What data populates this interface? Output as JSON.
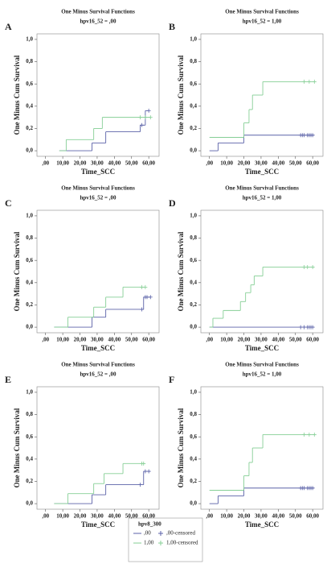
{
  "chart_data": [
    {
      "type": "line",
      "step": true,
      "panel": "A",
      "title": "One Minus Survival Functions",
      "subtitle": "hpv16_52 = ,00",
      "x_label": "Time_SCC",
      "y_label": "One Minus Cum Survival",
      "xlim": [
        -5,
        66
      ],
      "ylim": [
        -0.05,
        1.05
      ],
      "xticks": [
        {
          "value": 0,
          "label": ",00"
        },
        {
          "value": 10,
          "label": "10,00"
        },
        {
          "value": 20,
          "label": "20,00"
        },
        {
          "value": 30,
          "label": "30,00"
        },
        {
          "value": 40,
          "label": "40,00"
        },
        {
          "value": 50,
          "label": "50,00"
        },
        {
          "value": 60,
          "label": "60,00"
        }
      ],
      "yticks": [
        {
          "value": 0,
          "label": "0,0"
        },
        {
          "value": 0.2,
          "label": "0,2"
        },
        {
          "value": 0.4,
          "label": "0,4"
        },
        {
          "value": 0.6,
          "label": "0,6"
        },
        {
          "value": 0.8,
          "label": "0,8"
        },
        {
          "value": 1,
          "label": "1,0"
        }
      ],
      "series": [
        {
          "name": ",00",
          "color": "#5b62a8",
          "x": [
            8,
            27,
            35,
            55,
            58,
            60
          ],
          "values": [
            0,
            0.07,
            0.17,
            0.23,
            0.36,
            0.36
          ],
          "censored_x": [
            56,
            60
          ],
          "censored_values": [
            0.23,
            0.36
          ]
        },
        {
          "name": "1,00",
          "color": "#86cf96",
          "x": [
            8,
            12,
            28,
            33,
            61
          ],
          "values": [
            0,
            0.1,
            0.2,
            0.3,
            0.3
          ],
          "censored_x": [
            55,
            58,
            61
          ],
          "censored_values": [
            0.3,
            0.3,
            0.3
          ]
        }
      ]
    },
    {
      "type": "line",
      "step": true,
      "panel": "B",
      "title": "One Minus Survival Functions",
      "subtitle": "hpv16_52 = 1,00",
      "x_label": "Time_SCC",
      "y_label": "One Minus Cum Survival",
      "xlim": [
        -5,
        66
      ],
      "ylim": [
        -0.05,
        1.05
      ],
      "xticks": [
        {
          "value": 0,
          "label": ",00"
        },
        {
          "value": 10,
          "label": "10,00"
        },
        {
          "value": 20,
          "label": "20,00"
        },
        {
          "value": 30,
          "label": "30,00"
        },
        {
          "value": 40,
          "label": "40,00"
        },
        {
          "value": 50,
          "label": "50,00"
        },
        {
          "value": 60,
          "label": "60,00"
        }
      ],
      "yticks": [
        {
          "value": 0,
          "label": "0,0"
        },
        {
          "value": 0.2,
          "label": "0,2"
        },
        {
          "value": 0.4,
          "label": "0,4"
        },
        {
          "value": 0.6,
          "label": "0,6"
        },
        {
          "value": 0.8,
          "label": "0,8"
        },
        {
          "value": 1,
          "label": "1,0"
        }
      ],
      "series": [
        {
          "name": ",00",
          "color": "#5b62a8",
          "x": [
            0,
            5,
            20,
            61
          ],
          "values": [
            0,
            0.07,
            0.14,
            0.14
          ],
          "censored_x": [
            53,
            54,
            55,
            57,
            58,
            59,
            60
          ],
          "censored_values": [
            0.14,
            0.14,
            0.14,
            0.14,
            0.14,
            0.14,
            0.14
          ]
        },
        {
          "name": "1,00",
          "color": "#86cf96",
          "x": [
            0,
            20,
            23,
            25,
            31,
            61
          ],
          "values": [
            0.12,
            0.25,
            0.37,
            0.5,
            0.62,
            0.62
          ],
          "censored_x": [
            55,
            58,
            61
          ],
          "censored_values": [
            0.62,
            0.62,
            0.62
          ]
        }
      ]
    },
    {
      "type": "line",
      "step": true,
      "panel": "C",
      "title": "One Minus Survival Functions",
      "subtitle": "hpv16_52 = ,00",
      "x_label": "Time_SCC",
      "y_label": "One Minus Cum Survival",
      "xlim": [
        -5,
        66
      ],
      "ylim": [
        -0.05,
        1.05
      ],
      "xticks": [
        {
          "value": 0,
          "label": ",00"
        },
        {
          "value": 10,
          "label": "10,00"
        },
        {
          "value": 20,
          "label": "20,00"
        },
        {
          "value": 30,
          "label": "30,00"
        },
        {
          "value": 40,
          "label": "40,00"
        },
        {
          "value": 50,
          "label": "50,00"
        },
        {
          "value": 60,
          "label": "60,00"
        }
      ],
      "yticks": [
        {
          "value": 0,
          "label": "0,0"
        },
        {
          "value": 0.2,
          "label": "0,2"
        },
        {
          "value": 0.4,
          "label": "0,4"
        },
        {
          "value": 0.6,
          "label": "0,6"
        },
        {
          "value": 0.8,
          "label": "0,8"
        },
        {
          "value": 1,
          "label": "1,0"
        }
      ],
      "series": [
        {
          "name": ",00",
          "color": "#5b62a8",
          "x": [
            5,
            27,
            35,
            57,
            61
          ],
          "values": [
            0,
            0.09,
            0.16,
            0.27,
            0.27
          ],
          "censored_x": [
            56,
            58,
            59,
            61
          ],
          "censored_values": [
            0.16,
            0.27,
            0.27,
            0.27
          ]
        },
        {
          "name": "1,00",
          "color": "#86cf96",
          "x": [
            5,
            13,
            28,
            35,
            45,
            58
          ],
          "values": [
            0,
            0.09,
            0.18,
            0.27,
            0.36,
            0.36
          ],
          "censored_x": [
            56,
            58
          ],
          "censored_values": [
            0.36,
            0.36
          ]
        }
      ]
    },
    {
      "type": "line",
      "step": true,
      "panel": "D",
      "title": "One Minus Survival Functions",
      "subtitle": "hpv16_52 = 1,00",
      "x_label": "Time_SCC",
      "y_label": "One Minus Cum Survival",
      "xlim": [
        -5,
        66
      ],
      "ylim": [
        -0.05,
        1.05
      ],
      "xticks": [
        {
          "value": 0,
          "label": ",00"
        },
        {
          "value": 10,
          "label": "10,00"
        },
        {
          "value": 20,
          "label": "20,00"
        },
        {
          "value": 30,
          "label": "30,00"
        },
        {
          "value": 40,
          "label": "40,00"
        },
        {
          "value": 50,
          "label": "50,00"
        },
        {
          "value": 60,
          "label": "60,00"
        }
      ],
      "yticks": [
        {
          "value": 0,
          "label": "0,0"
        },
        {
          "value": 0.2,
          "label": "0,2"
        },
        {
          "value": 0.4,
          "label": "0,4"
        },
        {
          "value": 0.6,
          "label": "0,6"
        },
        {
          "value": 0.8,
          "label": "0,8"
        },
        {
          "value": 1,
          "label": "1,0"
        }
      ],
      "series": [
        {
          "name": ",00",
          "color": "#5b62a8",
          "x": [
            0,
            61
          ],
          "values": [
            0,
            0
          ],
          "censored_x": [
            53,
            55,
            57,
            58,
            59,
            60
          ],
          "censored_values": [
            0,
            0,
            0,
            0,
            0,
            0
          ]
        },
        {
          "name": "1,00",
          "color": "#86cf96",
          "x": [
            0,
            2,
            8,
            18,
            21,
            24,
            26,
            31,
            61
          ],
          "values": [
            0,
            0.08,
            0.15,
            0.23,
            0.31,
            0.38,
            0.46,
            0.54,
            0.54
          ],
          "censored_x": [
            55,
            57,
            60
          ],
          "censored_values": [
            0.54,
            0.54,
            0.54
          ]
        }
      ]
    },
    {
      "type": "line",
      "step": true,
      "panel": "E",
      "title": "One Minus Survival Functions",
      "subtitle": "hpv16_52 = ,00",
      "x_label": "Time_SCC",
      "y_label": "One Minus Cum Survival",
      "xlim": [
        -5,
        66
      ],
      "ylim": [
        -0.05,
        1.05
      ],
      "xticks": [
        {
          "value": 0,
          "label": ",00"
        },
        {
          "value": 10,
          "label": "10,00"
        },
        {
          "value": 20,
          "label": "20,00"
        },
        {
          "value": 30,
          "label": "30,00"
        },
        {
          "value": 40,
          "label": "40,00"
        },
        {
          "value": 50,
          "label": "50,00"
        },
        {
          "value": 60,
          "label": "60,00"
        }
      ],
      "yticks": [
        {
          "value": 0,
          "label": "0,0"
        },
        {
          "value": 0.2,
          "label": "0,2"
        },
        {
          "value": 0.4,
          "label": "0,4"
        },
        {
          "value": 0.6,
          "label": "0,6"
        },
        {
          "value": 0.8,
          "label": "0,8"
        },
        {
          "value": 1,
          "label": "1,0"
        }
      ],
      "series": [
        {
          "name": ",00",
          "color": "#5b62a8",
          "x": [
            5,
            27,
            35,
            57,
            61
          ],
          "values": [
            0,
            0.08,
            0.17,
            0.29,
            0.29
          ],
          "censored_x": [
            55,
            58,
            60
          ],
          "censored_values": [
            0.17,
            0.29,
            0.29
          ]
        },
        {
          "name": "1,00",
          "color": "#86cf96",
          "x": [
            5,
            13,
            28,
            34,
            45,
            58
          ],
          "values": [
            0,
            0.09,
            0.18,
            0.27,
            0.36,
            0.36
          ],
          "censored_x": [
            56,
            57
          ],
          "censored_values": [
            0.36,
            0.36
          ]
        }
      ]
    },
    {
      "type": "line",
      "step": true,
      "panel": "F",
      "title": "One Minus Survival Functions",
      "subtitle": "hpv16_52 = 1,00",
      "x_label": "Time_SCC",
      "y_label": "One Minus Cum Survival",
      "xlim": [
        -5,
        66
      ],
      "ylim": [
        -0.05,
        1.05
      ],
      "xticks": [
        {
          "value": 0,
          "label": ",00"
        },
        {
          "value": 10,
          "label": "10,00"
        },
        {
          "value": 20,
          "label": "20,00"
        },
        {
          "value": 30,
          "label": "30,00"
        },
        {
          "value": 40,
          "label": "40,00"
        },
        {
          "value": 50,
          "label": "50,00"
        },
        {
          "value": 60,
          "label": "60,00"
        }
      ],
      "yticks": [
        {
          "value": 0,
          "label": "0,0"
        },
        {
          "value": 0.2,
          "label": "0,2"
        },
        {
          "value": 0.4,
          "label": "0,4"
        },
        {
          "value": 0.6,
          "label": "0,6"
        },
        {
          "value": 0.8,
          "label": "0,8"
        },
        {
          "value": 1,
          "label": "1,0"
        }
      ],
      "series": [
        {
          "name": ",00",
          "color": "#5b62a8",
          "x": [
            0,
            5,
            20,
            61
          ],
          "values": [
            0,
            0.07,
            0.14,
            0.14
          ],
          "censored_x": [
            53,
            54,
            55,
            57,
            58,
            59,
            60
          ],
          "censored_values": [
            0.14,
            0.14,
            0.14,
            0.14,
            0.14,
            0.14,
            0.14
          ]
        },
        {
          "name": "1,00",
          "color": "#86cf96",
          "x": [
            0,
            20,
            23,
            25,
            31,
            61
          ],
          "values": [
            0.12,
            0.25,
            0.37,
            0.5,
            0.62,
            0.62
          ],
          "censored_x": [
            55,
            58,
            61
          ],
          "censored_values": [
            0.62,
            0.62,
            0.62
          ]
        }
      ]
    }
  ],
  "legend": {
    "title": "hpv8_300",
    "censored_labels": [
      ",00-censored",
      "1,00-censored"
    ]
  }
}
